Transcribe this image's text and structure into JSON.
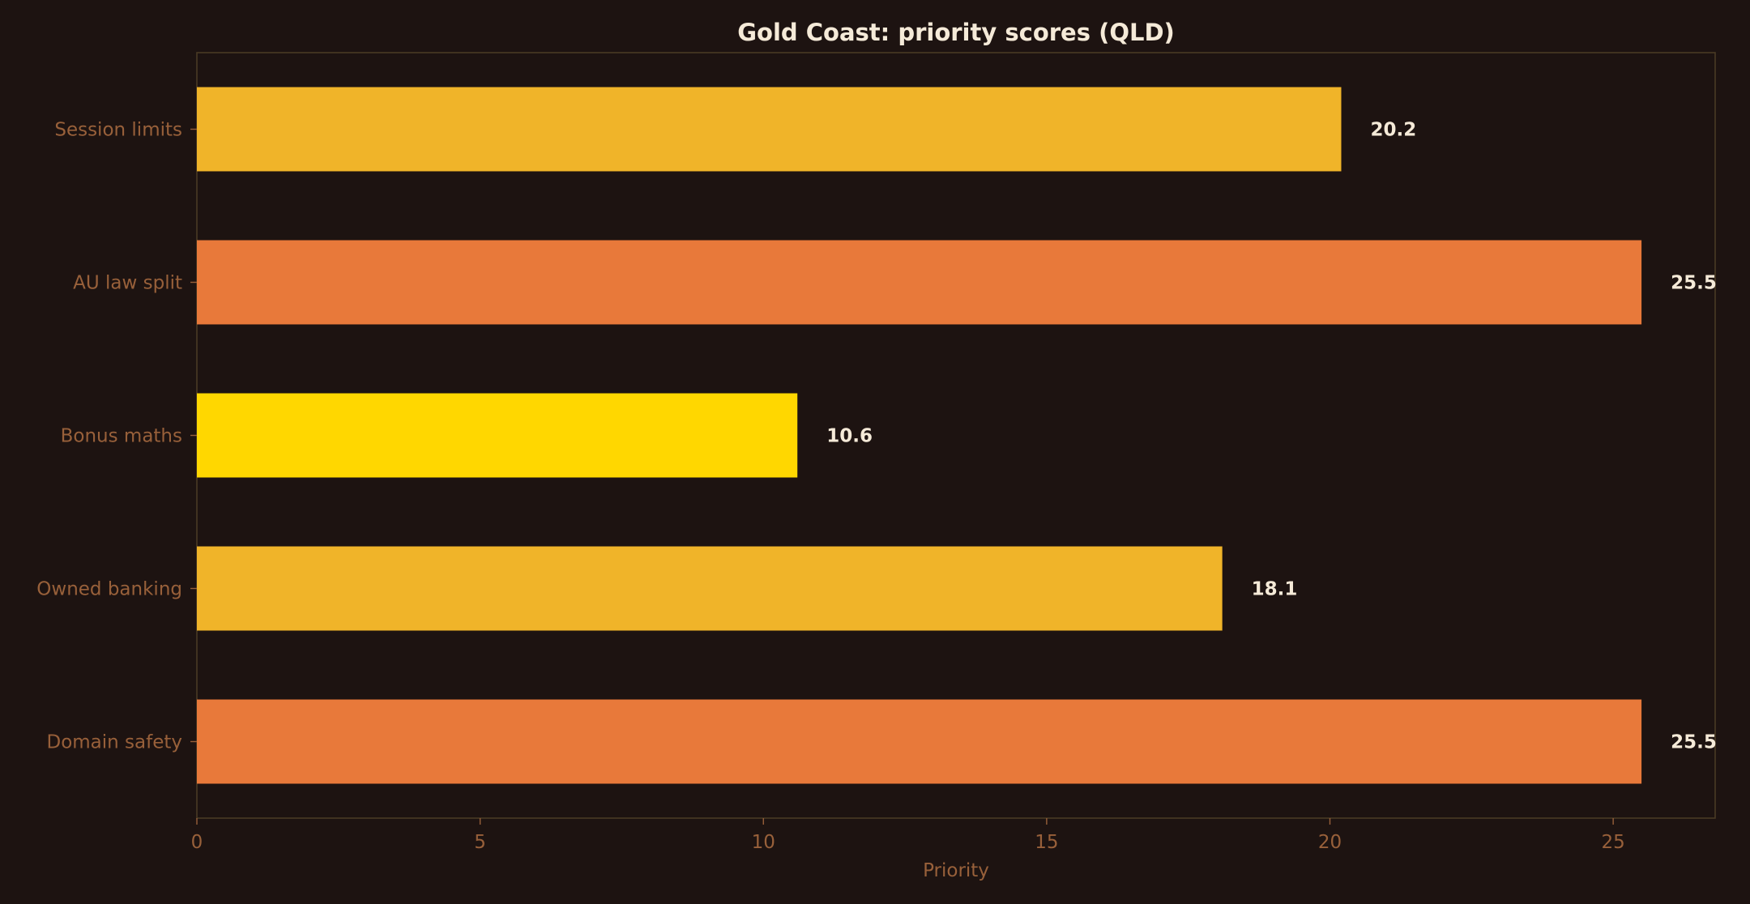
{
  "chart_data": {
    "type": "bar",
    "orientation": "horizontal",
    "title": "Gold Coast: priority scores (QLD)",
    "xlabel": "Priority",
    "ylabel": "",
    "categories": [
      "Session limits",
      "AU law split",
      "Bonus maths",
      "Owned banking",
      "Domain safety"
    ],
    "values": [
      20.2,
      25.5,
      10.6,
      18.1,
      25.5
    ],
    "value_labels": [
      "20.2",
      "25.5",
      "10.6",
      "18.1",
      "25.5"
    ],
    "bar_colors": [
      "#f0b429",
      "#e8793a",
      "#ffd700",
      "#f0b429",
      "#e8793a"
    ],
    "xlim": [
      0,
      26.8
    ],
    "xticks": [
      0,
      5,
      10,
      15,
      20,
      25
    ],
    "xtick_labels": [
      "0",
      "5",
      "10",
      "15",
      "20",
      "25"
    ],
    "grid": false,
    "legend": "none"
  },
  "colors": {
    "background": "#1d1311",
    "frame": "#4a3a24",
    "tick_text": "#98603a",
    "title_text": "#f5ead8"
  }
}
